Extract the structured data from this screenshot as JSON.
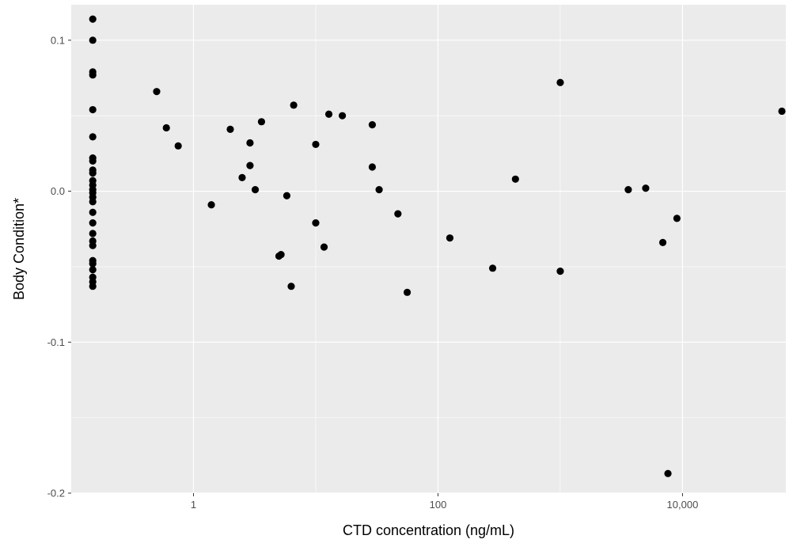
{
  "chart_data": {
    "type": "scatter",
    "xlabel": "CTD concentration (ng/mL)",
    "ylabel": "Body Condition*",
    "x_scale": "log10",
    "xlim": [
      0.1,
      70000
    ],
    "ylim": [
      -0.2,
      0.1235
    ],
    "x_ticks": [
      {
        "value": 1,
        "label": "1"
      },
      {
        "value": 100,
        "label": "100"
      },
      {
        "value": 10000,
        "label": "10,000"
      }
    ],
    "y_ticks": [
      {
        "value": 0.1,
        "label": "0.1"
      },
      {
        "value": 0.0,
        "label": "0.0"
      },
      {
        "value": -0.1,
        "label": "-0.1"
      },
      {
        "value": -0.2,
        "label": "-0.2"
      }
    ],
    "grid": true,
    "background_color": "#ebebeb",
    "grid_color": "#ffffff",
    "point_color": "#000000",
    "points": [
      [
        0.15,
        0.114
      ],
      [
        0.15,
        0.1
      ],
      [
        0.15,
        0.079
      ],
      [
        0.15,
        0.077
      ],
      [
        0.15,
        0.054
      ],
      [
        0.15,
        0.036
      ],
      [
        0.15,
        0.022
      ],
      [
        0.15,
        0.02
      ],
      [
        0.15,
        0.014
      ],
      [
        0.15,
        0.012
      ],
      [
        0.15,
        0.007
      ],
      [
        0.15,
        0.004
      ],
      [
        0.15,
        0.001
      ],
      [
        0.15,
        -0.001
      ],
      [
        0.15,
        -0.004
      ],
      [
        0.15,
        -0.007
      ],
      [
        0.15,
        -0.014
      ],
      [
        0.15,
        -0.021
      ],
      [
        0.15,
        -0.028
      ],
      [
        0.15,
        -0.033
      ],
      [
        0.15,
        -0.036
      ],
      [
        0.15,
        -0.046
      ],
      [
        0.15,
        -0.048
      ],
      [
        0.15,
        -0.052
      ],
      [
        0.15,
        -0.057
      ],
      [
        0.15,
        -0.06
      ],
      [
        0.15,
        -0.063
      ],
      [
        0.5,
        0.066
      ],
      [
        0.6,
        0.042
      ],
      [
        0.75,
        0.03
      ],
      [
        1.4,
        -0.009
      ],
      [
        2.0,
        0.041
      ],
      [
        2.5,
        0.009
      ],
      [
        2.9,
        0.032
      ],
      [
        2.9,
        0.017
      ],
      [
        3.2,
        0.001
      ],
      [
        3.6,
        0.046
      ],
      [
        5.0,
        -0.043
      ],
      [
        5.2,
        -0.042
      ],
      [
        5.8,
        -0.003
      ],
      [
        6.3,
        -0.063
      ],
      [
        6.6,
        0.057
      ],
      [
        10.0,
        0.031
      ],
      [
        10.0,
        -0.021
      ],
      [
        11.7,
        -0.037
      ],
      [
        12.8,
        0.051
      ],
      [
        16.5,
        0.05
      ],
      [
        29,
        0.044
      ],
      [
        29,
        0.016
      ],
      [
        33,
        0.001
      ],
      [
        47,
        -0.015
      ],
      [
        56,
        -0.067
      ],
      [
        125,
        -0.031
      ],
      [
        280,
        -0.051
      ],
      [
        430,
        0.008
      ],
      [
        1000,
        0.072
      ],
      [
        1000,
        -0.053
      ],
      [
        3600,
        0.001
      ],
      [
        5000,
        0.002
      ],
      [
        6900,
        -0.034
      ],
      [
        7600,
        -0.187
      ],
      [
        9000,
        -0.018
      ],
      [
        65000,
        0.053
      ]
    ]
  }
}
